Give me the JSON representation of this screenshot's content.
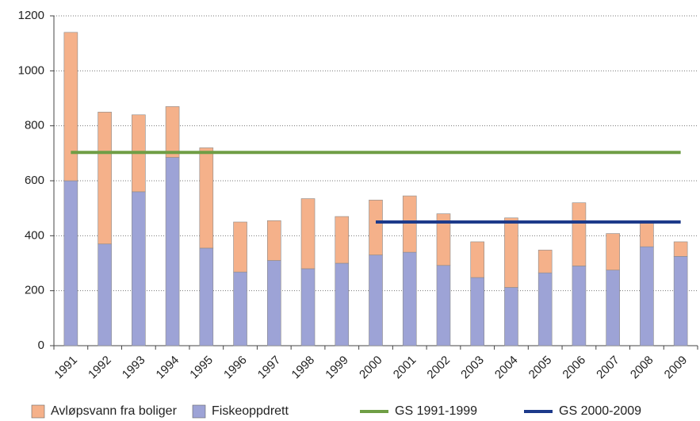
{
  "chart_data": {
    "type": "bar",
    "categories": [
      "1991",
      "1992",
      "1993",
      "1994",
      "1995",
      "1996",
      "1997",
      "1998",
      "1999",
      "2000",
      "2001",
      "2002",
      "2003",
      "2004",
      "2005",
      "2006",
      "2007",
      "2008",
      "2009"
    ],
    "series": [
      {
        "name": "Avløpsvann fra boliger",
        "color": "#f5b18a",
        "type": "bar",
        "values": [
          540,
          480,
          280,
          185,
          365,
          182,
          145,
          255,
          170,
          200,
          205,
          188,
          130,
          253,
          83,
          230,
          133,
          90,
          53
        ]
      },
      {
        "name": "Fiskeoppdrett",
        "color": "#9da3d6",
        "type": "bar",
        "values": [
          600,
          370,
          560,
          685,
          355,
          268,
          310,
          280,
          300,
          330,
          340,
          292,
          248,
          212,
          265,
          290,
          275,
          360,
          325
        ]
      },
      {
        "name": "GS 1991-1999",
        "color": "#6f9e45",
        "type": "line",
        "values": [
          703,
          703,
          703,
          703,
          703,
          703,
          703,
          703,
          703,
          703,
          703,
          703,
          703,
          703,
          703,
          703,
          703,
          703,
          703
        ]
      },
      {
        "name": "GS 2000-2009",
        "color": "#1d3a8a",
        "type": "line",
        "values": [
          null,
          null,
          null,
          null,
          null,
          null,
          null,
          null,
          null,
          450,
          450,
          450,
          450,
          450,
          450,
          450,
          450,
          450,
          450
        ]
      }
    ],
    "ylim": [
      0,
      1200
    ],
    "yticks": [
      0,
      200,
      400,
      600,
      800,
      1000,
      1200
    ],
    "grid": true
  }
}
